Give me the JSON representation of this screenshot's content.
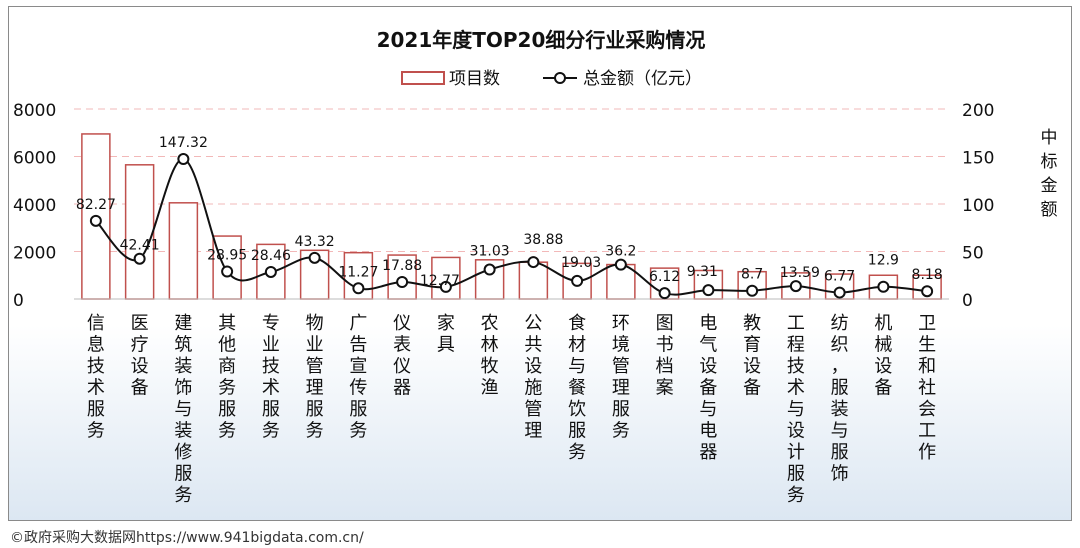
{
  "chart_data": {
    "type": "bar-line-combo",
    "title": "2021年度TOP20细分行业采购情况",
    "legend": {
      "bar_label": "项目数",
      "line_label": "总金额（亿元）",
      "placement": "top-center"
    },
    "y_left": {
      "ylim": [
        0,
        8000
      ],
      "ticks": [
        "0",
        "2000",
        "4000",
        "6000",
        "8000"
      ]
    },
    "y_right": {
      "ylim": [
        0,
        200
      ],
      "ticks": [
        "0",
        "50",
        "100",
        "150",
        "200"
      ],
      "label": "中标金额"
    },
    "categories": [
      "信息技术服务",
      "医疗设备",
      "建筑装饰与装修服务",
      "其他商务服务",
      "专业技术服务",
      "物业管理服务",
      "广告宣传服务",
      "仪表仪器",
      "家具",
      "农林牧渔",
      "公共设施管理",
      "食材与餐饮服务",
      "环境管理服务",
      "图书档案",
      "电气设备与电器",
      "教育设备",
      "工程技术与设计服务",
      "纺织，服装与服饰",
      "机械设备",
      "卫生和社会工作"
    ],
    "series": [
      {
        "name": "项目数",
        "kind": "bar",
        "axis": "left",
        "values": [
          6950,
          5650,
          4050,
          2650,
          2300,
          2050,
          1950,
          1850,
          1750,
          1650,
          1550,
          1500,
          1450,
          1300,
          1200,
          1150,
          1100,
          1050,
          1000,
          1000
        ]
      },
      {
        "name": "总金额（亿元）",
        "kind": "line",
        "axis": "right",
        "values": [
          82.27,
          42.41,
          147.32,
          28.95,
          28.46,
          43.32,
          11.27,
          17.88,
          12.77,
          31.03,
          38.88,
          19.03,
          36.2,
          6.12,
          9.31,
          8.7,
          13.59,
          6.77,
          12.9,
          8.18
        ],
        "labels": [
          "82.27",
          "42.41",
          "147.32",
          "28.95",
          "28.46",
          "43.32",
          "11.27",
          "17.88",
          "12.77",
          "31.03",
          "38.88",
          "19.03",
          "36.2",
          "6.12",
          "9.31",
          "8.7",
          "13.59",
          "6.77",
          "12.9",
          "8.18"
        ]
      }
    ],
    "colors": {
      "bar_stroke": "#c0504d",
      "bar_fill": "#ffffff",
      "line": "#111111",
      "grid": "#f2b8b8"
    },
    "grid": true
  },
  "footer": "©政府采购大数据网https://www.941bigdata.com.cn/"
}
